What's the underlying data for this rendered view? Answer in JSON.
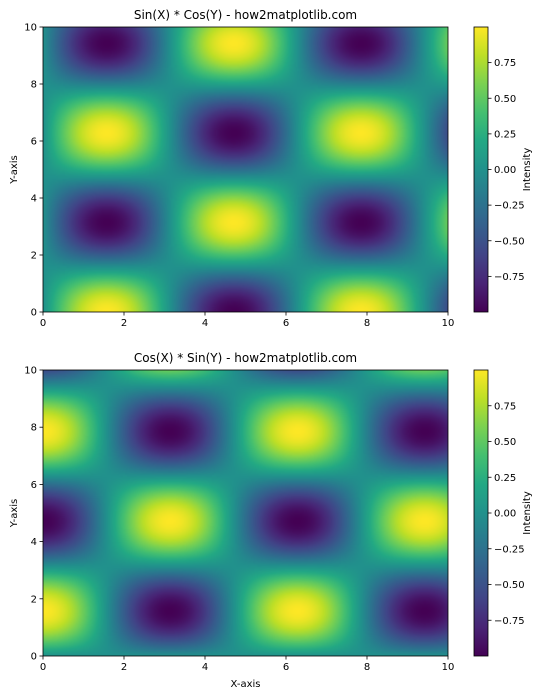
{
  "chart_data": [
    {
      "type": "heatmap",
      "title": "Sin(X) * Cos(Y) - how2matplotlib.com",
      "function": "sin(x)*cos(y)",
      "xlabel": "",
      "ylabel": "Y-axis",
      "xlim": [
        0,
        10
      ],
      "ylim": [
        0,
        10
      ],
      "x_ticks": [
        0,
        2,
        4,
        6,
        8,
        10
      ],
      "y_ticks": [
        0,
        2,
        4,
        6,
        8,
        10
      ],
      "colormap": "viridis",
      "colorbar": {
        "label": "Intensity",
        "range": [
          -1,
          1
        ],
        "ticks": [
          0.75,
          0.5,
          0.25,
          0.0,
          -0.25,
          -0.5,
          -0.75
        ],
        "tick_labels": [
          "0.75",
          "0.50",
          "0.25",
          "0.00",
          "−0.25",
          "−0.50",
          "−0.75"
        ]
      }
    },
    {
      "type": "heatmap",
      "title": "Cos(X) * Sin(Y) - how2matplotlib.com",
      "function": "cos(x)*sin(y)",
      "xlabel": "X-axis",
      "ylabel": "Y-axis",
      "xlim": [
        0,
        10
      ],
      "ylim": [
        0,
        10
      ],
      "x_ticks": [
        0,
        2,
        4,
        6,
        8,
        10
      ],
      "y_ticks": [
        0,
        2,
        4,
        6,
        8,
        10
      ],
      "colormap": "viridis",
      "colorbar": {
        "label": "Intensity",
        "range": [
          -1,
          1
        ],
        "ticks": [
          0.75,
          0.5,
          0.25,
          0.0,
          -0.25,
          -0.5,
          -0.75
        ],
        "tick_labels": [
          "0.75",
          "0.50",
          "0.25",
          "0.00",
          "−0.25",
          "−0.50",
          "−0.75"
        ]
      }
    }
  ]
}
